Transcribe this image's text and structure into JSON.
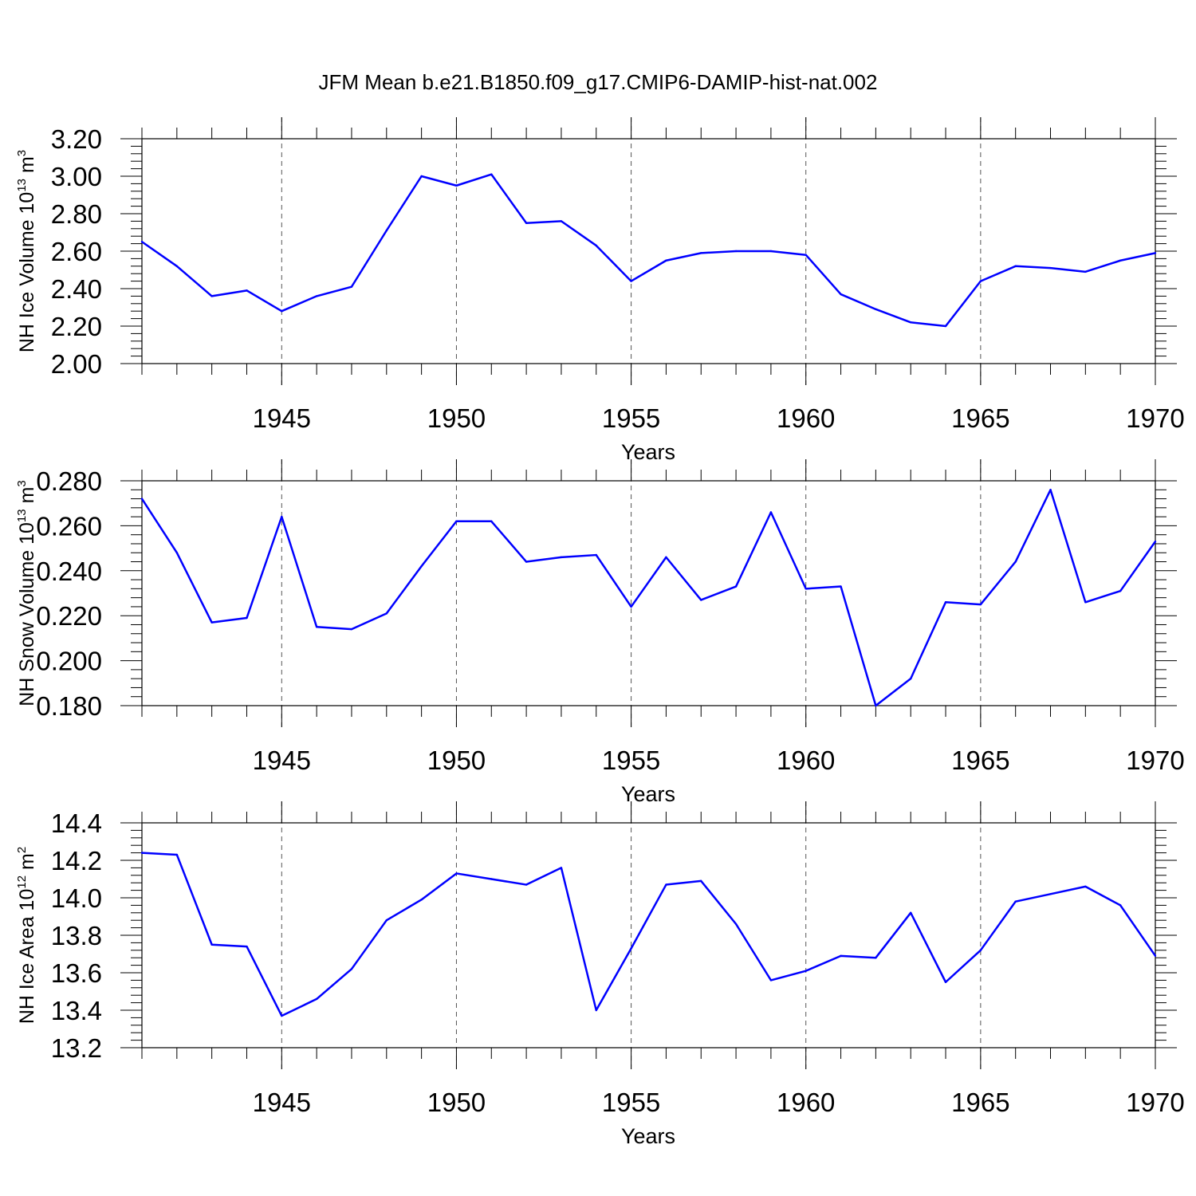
{
  "title": "JFM Mean b.e21.B1850.f09_g17.CMIP6-DAMIP-hist-nat.002",
  "colors": {
    "line": "#0000ff",
    "axis": "#000000",
    "grid": "#555555"
  },
  "chart_data": [
    {
      "type": "line",
      "xlabel": "Years",
      "ylabel": {
        "base": "NH Ice Volume 10",
        "exp": "13",
        "unit": " m",
        "unit_exp": "3"
      },
      "xlim": [
        1941,
        1970
      ],
      "ylim": [
        2.0,
        3.2
      ],
      "xticks": [
        "1945",
        "1950",
        "1955",
        "1960",
        "1965",
        "1970"
      ],
      "yticks": [
        "2.00",
        "2.20",
        "2.40",
        "2.60",
        "2.80",
        "3.00",
        "3.20"
      ],
      "grid": "dashed vertical lines at labelled years",
      "x": [
        1941,
        1942,
        1943,
        1944,
        1945,
        1946,
        1947,
        1948,
        1949,
        1950,
        1951,
        1952,
        1953,
        1954,
        1955,
        1956,
        1957,
        1958,
        1959,
        1960,
        1961,
        1962,
        1963,
        1964,
        1965,
        1966,
        1967,
        1968,
        1969,
        1970
      ],
      "values": [
        2.65,
        2.52,
        2.36,
        2.39,
        2.28,
        2.36,
        2.41,
        2.71,
        3.0,
        2.95,
        3.01,
        2.75,
        2.76,
        2.63,
        2.44,
        2.55,
        2.59,
        2.6,
        2.6,
        2.58,
        2.37,
        2.29,
        2.22,
        2.2,
        2.44,
        2.52,
        2.51,
        2.49,
        2.55,
        2.59
      ]
    },
    {
      "type": "line",
      "xlabel": "Years",
      "ylabel": {
        "base": "NH Snow Volume 10",
        "exp": "13",
        "unit": " m",
        "unit_exp": "3"
      },
      "xlim": [
        1941,
        1970
      ],
      "ylim": [
        0.18,
        0.28
      ],
      "xticks": [
        "1945",
        "1950",
        "1955",
        "1960",
        "1965",
        "1970"
      ],
      "yticks": [
        "0.180",
        "0.200",
        "0.220",
        "0.240",
        "0.260",
        "0.280"
      ],
      "grid": "dashed vertical lines at labelled years",
      "x": [
        1941,
        1942,
        1943,
        1944,
        1945,
        1946,
        1947,
        1948,
        1949,
        1950,
        1951,
        1952,
        1953,
        1954,
        1955,
        1956,
        1957,
        1958,
        1959,
        1960,
        1961,
        1962,
        1963,
        1964,
        1965,
        1966,
        1967,
        1968,
        1969,
        1970
      ],
      "values": [
        0.272,
        0.248,
        0.217,
        0.219,
        0.264,
        0.215,
        0.214,
        0.221,
        0.242,
        0.262,
        0.262,
        0.244,
        0.246,
        0.247,
        0.224,
        0.246,
        0.227,
        0.233,
        0.266,
        0.232,
        0.233,
        0.18,
        0.192,
        0.226,
        0.225,
        0.244,
        0.276,
        0.226,
        0.231,
        0.253
      ]
    },
    {
      "type": "line",
      "xlabel": "Years",
      "ylabel": {
        "base": "NH Ice Area 10",
        "exp": "12",
        "unit": " m",
        "unit_exp": "2"
      },
      "xlim": [
        1941,
        1970
      ],
      "ylim": [
        13.2,
        14.4
      ],
      "xticks": [
        "1945",
        "1950",
        "1955",
        "1960",
        "1965",
        "1970"
      ],
      "yticks": [
        "13.2",
        "13.4",
        "13.6",
        "13.8",
        "14.0",
        "14.2",
        "14.4"
      ],
      "grid": "dashed vertical lines at labelled years",
      "x": [
        1941,
        1942,
        1943,
        1944,
        1945,
        1946,
        1947,
        1948,
        1949,
        1950,
        1951,
        1952,
        1953,
        1954,
        1955,
        1956,
        1957,
        1958,
        1959,
        1960,
        1961,
        1962,
        1963,
        1964,
        1965,
        1966,
        1967,
        1968,
        1969,
        1970
      ],
      "values": [
        14.24,
        14.23,
        13.75,
        13.74,
        13.37,
        13.46,
        13.62,
        13.88,
        13.99,
        14.13,
        14.1,
        14.07,
        14.16,
        13.4,
        13.73,
        14.07,
        14.09,
        13.86,
        13.56,
        13.61,
        13.69,
        13.68,
        13.92,
        13.55,
        13.72,
        13.98,
        14.02,
        14.06,
        13.96,
        13.69
      ]
    }
  ]
}
